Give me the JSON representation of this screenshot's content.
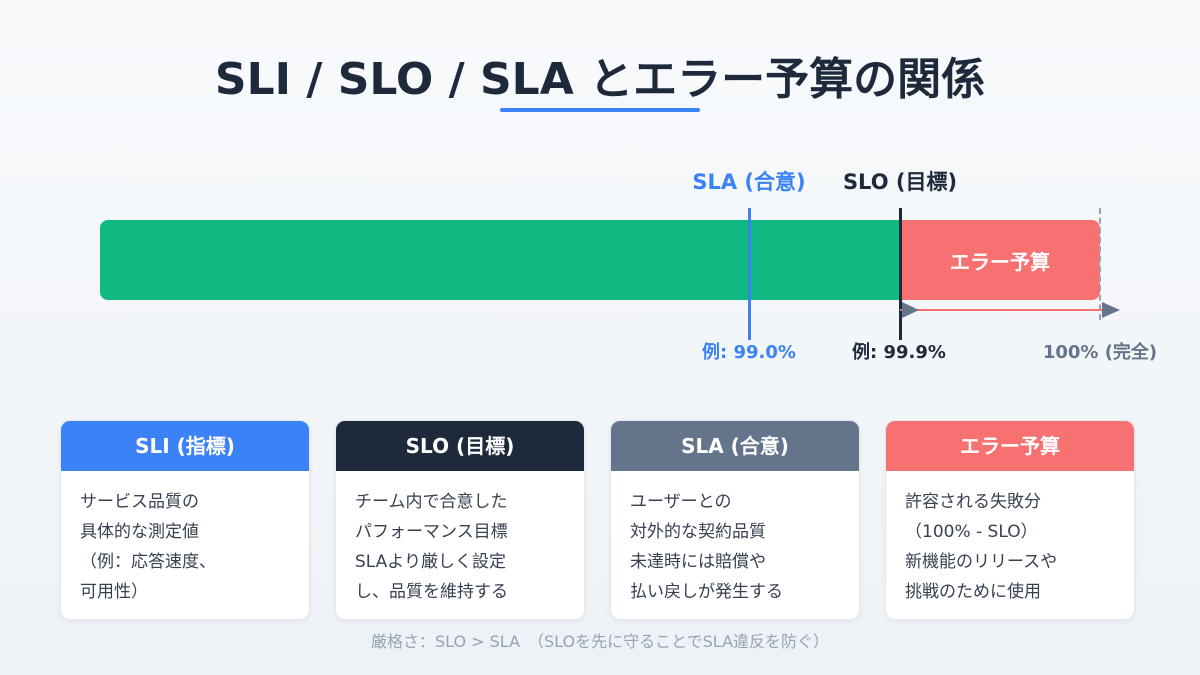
{
  "title": "SLI / SLO / SLA とエラー予算の関係",
  "colors": {
    "title": "#1e293b",
    "sla_blue": "#3b82f6",
    "slo_dark": "#1e293b",
    "slate": "#64748b",
    "healthy_green": "#10b981",
    "error_budget_red": "#f87171",
    "muted": "#94a3b8"
  },
  "diagram": {
    "sla_label": "SLA (合意)",
    "slo_label": "SLO (目標)",
    "error_budget_label": "エラー予算",
    "sla_example": "例: 99.0%",
    "slo_example": "例: 99.9%",
    "full_label": "100% (完全)"
  },
  "cards": [
    {
      "title": "SLI (指標)",
      "color": "#3b82f6",
      "lines": [
        "サービス品質の",
        "具体的な測定値",
        "（例：応答速度、",
        "可用性）"
      ]
    },
    {
      "title": "SLO (目標)",
      "color": "#1e293b",
      "lines": [
        "チーム内で合意した",
        "パフォーマンス目標",
        "SLAより厳しく設定",
        "し、品質を維持する"
      ]
    },
    {
      "title": "SLA (合意)",
      "color": "#64748b",
      "lines": [
        "ユーザーとの",
        "対外的な契約品質",
        "未達時には賠償や",
        "払い戻しが発生する"
      ]
    },
    {
      "title": "エラー予算",
      "color": "#f87171",
      "lines": [
        "許容される失敗分",
        "（100% - SLO）",
        "新機能のリリースや",
        "挑戦のために使用"
      ]
    }
  ],
  "footer": "厳格さ：SLO > SLA　（SLOを先に守ることでSLA違反を防ぐ）"
}
